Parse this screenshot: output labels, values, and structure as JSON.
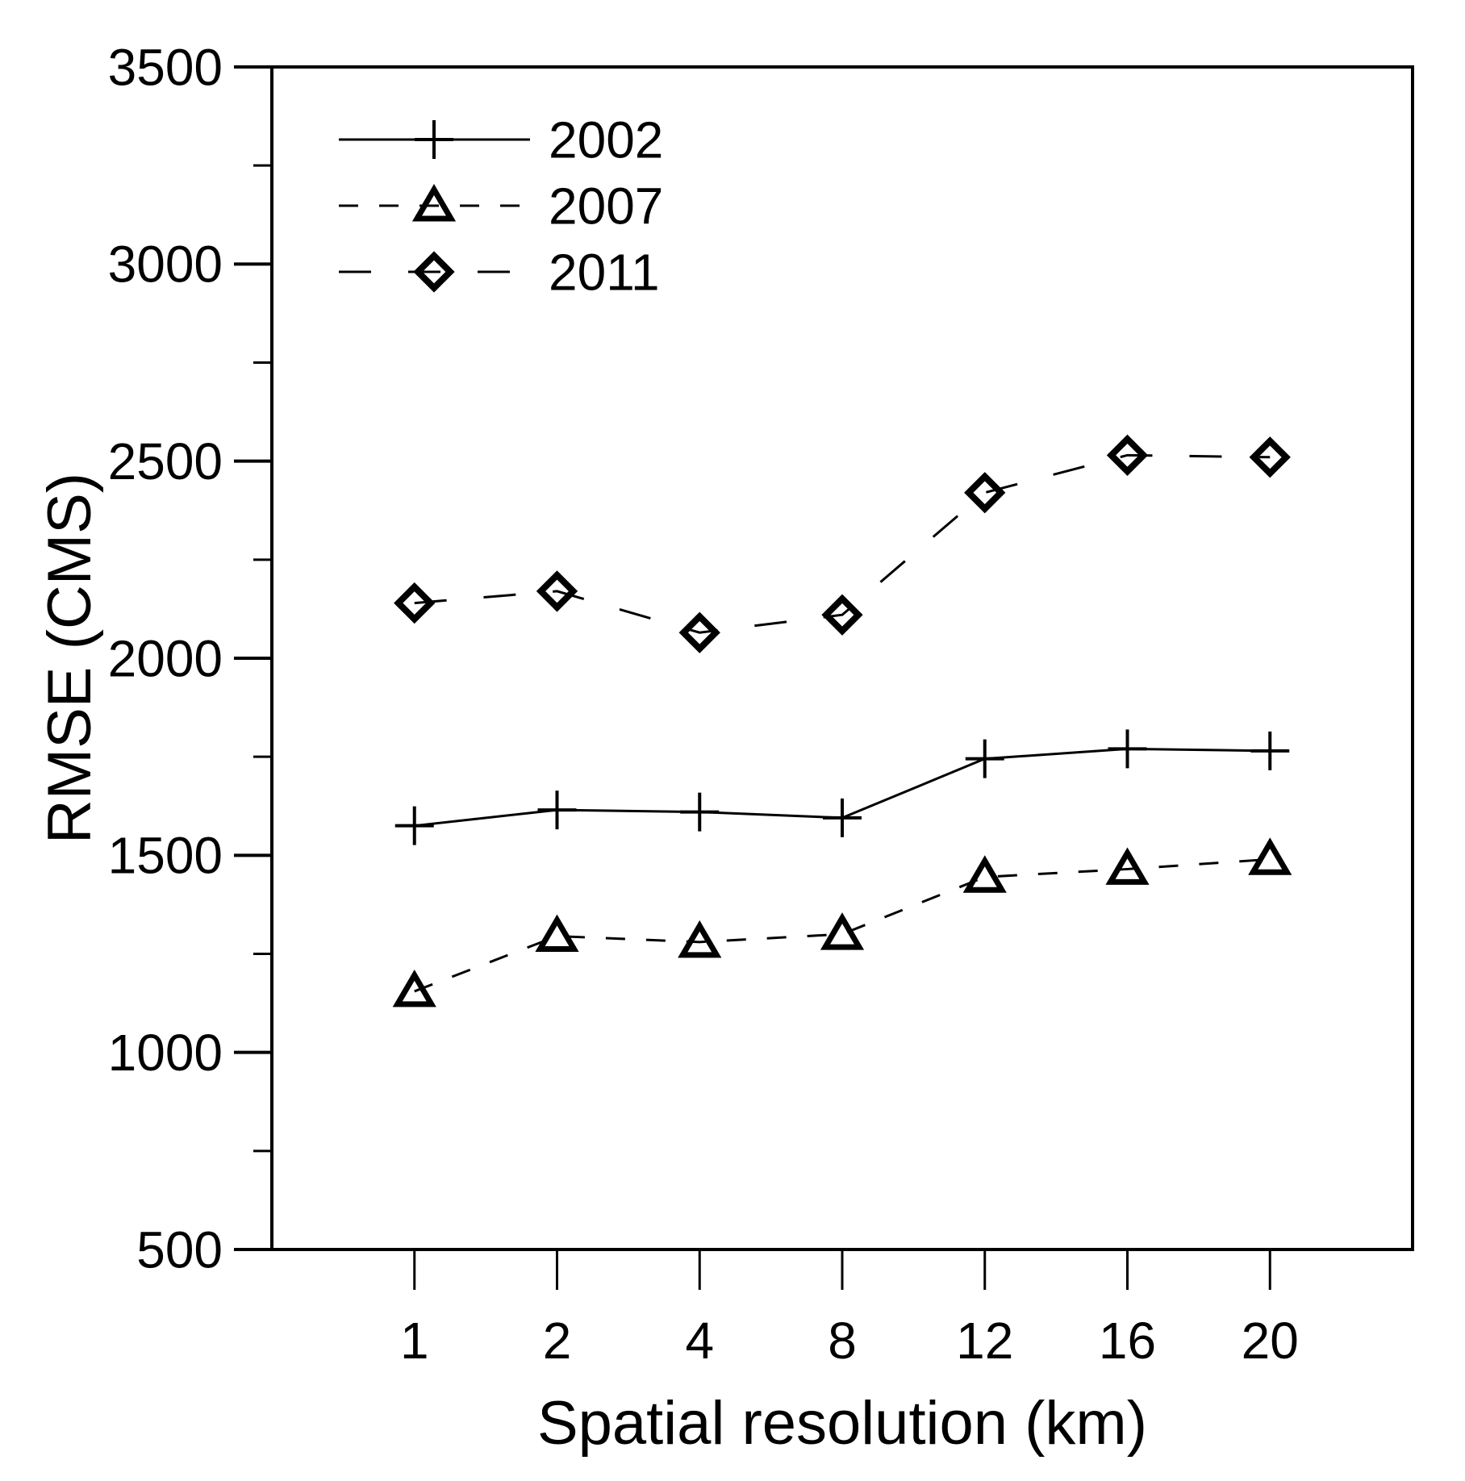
{
  "chart_data": {
    "type": "line",
    "title": "",
    "xlabel": "Spatial resolution (km)",
    "ylabel": "RMSE (CMS)",
    "x_categories": [
      "1",
      "2",
      "4",
      "8",
      "12",
      "16",
      "20"
    ],
    "x_scale": "ordinal",
    "ylim": [
      500,
      3500
    ],
    "y_major_ticks": [
      500,
      1000,
      1500,
      2000,
      2500,
      3000,
      3500
    ],
    "y_minor_step": 250,
    "grid": false,
    "legend_position": "top-left-inside",
    "colors": {
      "foreground": "#000000",
      "background": "#ffffff"
    },
    "series": [
      {
        "name": "2002",
        "marker": "plus",
        "line": "solid",
        "values": [
          1575,
          1615,
          1610,
          1595,
          1745,
          1770,
          1765
        ]
      },
      {
        "name": "2007",
        "marker": "triangle",
        "line": "dashed",
        "values": [
          1155,
          1295,
          1280,
          1300,
          1445,
          1465,
          1490
        ]
      },
      {
        "name": "2011",
        "marker": "diamond",
        "line": "long-dash",
        "values": [
          2140,
          2170,
          2065,
          2110,
          2420,
          2515,
          2510
        ]
      }
    ]
  }
}
